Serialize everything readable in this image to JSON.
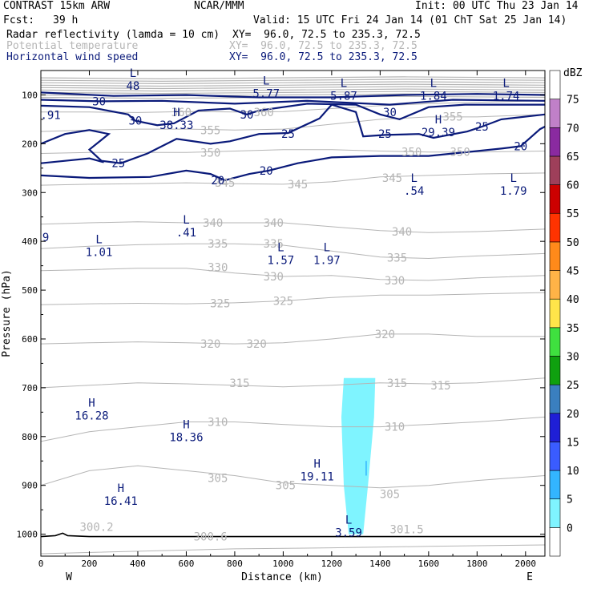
{
  "header": {
    "title": "CONTRAST 15km ARW",
    "center": "NCAR/MMM",
    "init": "Init: 00 UTC Thu 23 Jan 14",
    "fcst_label": "Fcst:",
    "fcst_value": "39 h",
    "valid": "Valid: 15 UTC Fri 24 Jan 14 (01 ChT Sat 25 Jan 14)"
  },
  "fields": [
    {
      "name": "Radar reflectivity (lamda = 10 cm)",
      "xy": "XY=  96.0, 72.5 to 235.3, 72.5"
    },
    {
      "name": "Potential temperature",
      "xy": "XY=  96.0, 72.5 to 235.3, 72.5"
    },
    {
      "name": "Horizontal wind speed",
      "xy": "XY=  96.0, 72.5 to 235.3, 72.5"
    }
  ],
  "colors": {
    "wind_contour": "#0a1a7a",
    "theta_contour": "#b5b5b5",
    "reflectivity_fill": "#7ff4ff",
    "terrain": "#000000"
  },
  "chart_data": {
    "type": "contour",
    "xlabel": "Distance (km)",
    "ylabel": "Pressure (hPa)",
    "xlim": [
      0,
      2080
    ],
    "ylim": [
      1045,
      50
    ],
    "y_log": false,
    "x_ticks": [
      0,
      200,
      400,
      600,
      800,
      1000,
      1200,
      1400,
      1600,
      1800,
      2000
    ],
    "y_ticks": [
      100,
      200,
      300,
      400,
      500,
      600,
      700,
      800,
      900,
      1000
    ],
    "x_end_labels": {
      "left": "W",
      "right": "E"
    },
    "colorbar": {
      "unit": "dBZ",
      "levels": [
        0,
        5,
        10,
        15,
        20,
        25,
        30,
        35,
        40,
        45,
        50,
        55,
        60,
        65,
        70,
        75
      ],
      "colors": [
        "#ffffff",
        "#7ff4ff",
        "#33b5ff",
        "#3a5cff",
        "#1f1fd6",
        "#3a7fbf",
        "#0fa00f",
        "#3fe03f",
        "#ffe54a",
        "#ffb347",
        "#ff8a1a",
        "#ff3300",
        "#cc0000",
        "#9e3f5a",
        "#8a2aa0",
        "#c080c8",
        "#ffffff"
      ]
    },
    "theta_levels": [
      300,
      305,
      310,
      315,
      320,
      325,
      330,
      335,
      340,
      345,
      350,
      355,
      360
    ],
    "theta_labels": [
      {
        "text": "360",
        "x": 580,
        "p": 135
      },
      {
        "text": "360",
        "x": 920,
        "p": 135
      },
      {
        "text": "355",
        "x": 700,
        "p": 172
      },
      {
        "text": "355",
        "x": 1700,
        "p": 144
      },
      {
        "text": "350",
        "x": 700,
        "p": 218
      },
      {
        "text": "350",
        "x": 1530,
        "p": 217
      },
      {
        "text": "350",
        "x": 1730,
        "p": 217
      },
      {
        "text": "345",
        "x": 760,
        "p": 280
      },
      {
        "text": "345",
        "x": 1060,
        "p": 283
      },
      {
        "text": "345",
        "x": 1450,
        "p": 270
      },
      {
        "text": "340",
        "x": 710,
        "p": 362
      },
      {
        "text": "340",
        "x": 960,
        "p": 362
      },
      {
        "text": "340",
        "x": 1490,
        "p": 380
      },
      {
        "text": "335",
        "x": 730,
        "p": 405
      },
      {
        "text": "335",
        "x": 960,
        "p": 405
      },
      {
        "text": "335",
        "x": 1470,
        "p": 433
      },
      {
        "text": "330",
        "x": 730,
        "p": 453
      },
      {
        "text": "330",
        "x": 960,
        "p": 472
      },
      {
        "text": "330",
        "x": 1460,
        "p": 480
      },
      {
        "text": "325",
        "x": 740,
        "p": 527
      },
      {
        "text": "325",
        "x": 1000,
        "p": 522
      },
      {
        "text": "320",
        "x": 700,
        "p": 610
      },
      {
        "text": "320",
        "x": 890,
        "p": 610
      },
      {
        "text": "320",
        "x": 1420,
        "p": 590
      },
      {
        "text": "315",
        "x": 820,
        "p": 690
      },
      {
        "text": "315",
        "x": 1470,
        "p": 690
      },
      {
        "text": "315",
        "x": 1650,
        "p": 695
      },
      {
        "text": "310",
        "x": 730,
        "p": 770
      },
      {
        "text": "310",
        "x": 1460,
        "p": 780
      },
      {
        "text": "305",
        "x": 730,
        "p": 885
      },
      {
        "text": "305",
        "x": 1010,
        "p": 900
      },
      {
        "text": "305",
        "x": 1440,
        "p": 918
      },
      {
        "text": "300.2",
        "x": 230,
        "p": 985
      },
      {
        "text": "300.6",
        "x": 700,
        "p": 1005
      },
      {
        "text": "301.5",
        "x": 1510,
        "p": 990
      }
    ],
    "wind_levels": [
      20,
      25,
      30
    ],
    "wind_labels": [
      {
        "text": "30",
        "x": 240,
        "p": 113
      },
      {
        "text": "30",
        "x": 390,
        "p": 153
      },
      {
        "text": "30",
        "x": 850,
        "p": 140
      },
      {
        "text": "30",
        "x": 1440,
        "p": 135
      },
      {
        "text": "25",
        "x": 320,
        "p": 240
      },
      {
        "text": "25",
        "x": 1020,
        "p": 180
      },
      {
        "text": "25",
        "x": 1420,
        "p": 180
      },
      {
        "text": "25",
        "x": 1820,
        "p": 165
      },
      {
        "text": "20",
        "x": 730,
        "p": 275
      },
      {
        "text": "20",
        "x": 930,
        "p": 255
      },
      {
        "text": "20",
        "x": 1980,
        "p": 205
      }
    ],
    "extrema": [
      {
        "type": "L",
        "value": "48",
        "x": 380,
        "p": 70,
        "field": "wind"
      },
      {
        "type": "L",
        "value": "5.77",
        "x": 930,
        "p": 85,
        "field": "wind"
      },
      {
        "type": "L",
        "value": "5.87",
        "x": 1250,
        "p": 90,
        "field": "wind"
      },
      {
        "type": "L",
        "value": "1.84",
        "x": 1620,
        "p": 90,
        "field": "wind"
      },
      {
        "type": "L",
        "value": "1.74",
        "x": 1920,
        "p": 90,
        "field": "wind"
      },
      {
        "type": "",
        "value": ".91",
        "x": 40,
        "p": 130,
        "field": "wind"
      },
      {
        "type": "H",
        "value": "38.33",
        "x": 560,
        "p": 150,
        "field": "wind"
      },
      {
        "type": "H",
        "value": "29.39",
        "x": 1640,
        "p": 165,
        "field": "wind"
      },
      {
        "type": "L",
        "value": ".54",
        "x": 1540,
        "p": 285,
        "field": "wind"
      },
      {
        "type": "L",
        "value": "1.79",
        "x": 1950,
        "p": 285,
        "field": "wind"
      },
      {
        "type": "",
        "value": "9",
        "x": 20,
        "p": 380,
        "field": "wind"
      },
      {
        "type": "L",
        "value": ".41",
        "x": 600,
        "p": 370,
        "field": "wind"
      },
      {
        "type": "L",
        "value": "1.01",
        "x": 240,
        "p": 410,
        "field": "wind"
      },
      {
        "type": "L",
        "value": "1.57",
        "x": 990,
        "p": 427,
        "field": "wind"
      },
      {
        "type": "L",
        "value": "1.97",
        "x": 1180,
        "p": 427,
        "field": "wind"
      },
      {
        "type": "H",
        "value": "16.28",
        "x": 210,
        "p": 745,
        "field": "wind"
      },
      {
        "type": "H",
        "value": "18.36",
        "x": 600,
        "p": 790,
        "field": "wind"
      },
      {
        "type": "H",
        "value": "19.11",
        "x": 1140,
        "p": 870,
        "field": "wind"
      },
      {
        "type": "H",
        "value": "16.41",
        "x": 330,
        "p": 920,
        "field": "wind"
      },
      {
        "type": "L",
        "value": "3.59",
        "x": 1270,
        "p": 985,
        "field": "wind"
      }
    ]
  }
}
